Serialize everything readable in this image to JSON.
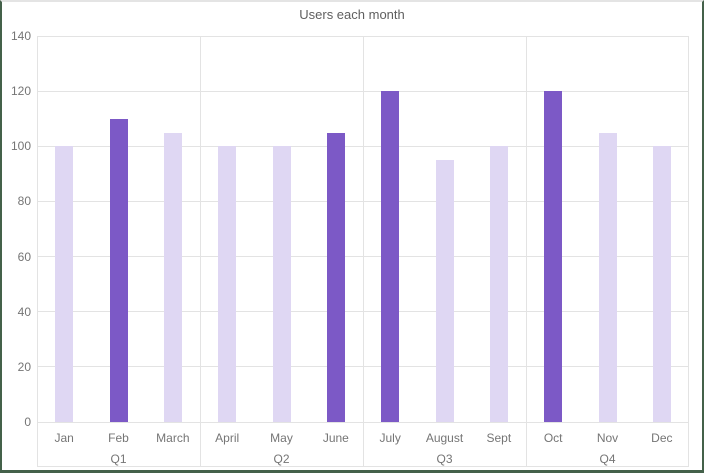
{
  "chart_data": {
    "type": "bar",
    "title": "Users each month",
    "categories": [
      "Jan",
      "Feb",
      "March",
      "April",
      "May",
      "June",
      "July",
      "August",
      "Sept",
      "Oct",
      "Nov",
      "Dec"
    ],
    "values": [
      100,
      110,
      105,
      100,
      100,
      105,
      120,
      95,
      100,
      120,
      105,
      100
    ],
    "highlighted": [
      false,
      true,
      false,
      false,
      false,
      true,
      true,
      false,
      false,
      true,
      false,
      false
    ],
    "groups": [
      {
        "label": "Q1",
        "months": [
          "Jan",
          "Feb",
          "March"
        ]
      },
      {
        "label": "Q2",
        "months": [
          "April",
          "May",
          "June"
        ]
      },
      {
        "label": "Q3",
        "months": [
          "July",
          "August",
          "Sept"
        ]
      },
      {
        "label": "Q4",
        "months": [
          "Oct",
          "Nov",
          "Dec"
        ]
      }
    ],
    "xlabel": "",
    "ylabel": "",
    "ylim": [
      0,
      140
    ],
    "yticks": [
      0,
      20,
      40,
      60,
      80,
      100,
      120,
      140
    ],
    "grid": true,
    "legend": "none"
  },
  "colors": {
    "bar_light": "#DFD7F3",
    "bar_dark": "#7C59C6",
    "grid": "#E3E3E3",
    "axis_text": "#757575",
    "title_text": "#5F5F5F",
    "frame_green": "#44614A",
    "frame_top": "#E4E4E4",
    "background": "#FFFFFF"
  }
}
